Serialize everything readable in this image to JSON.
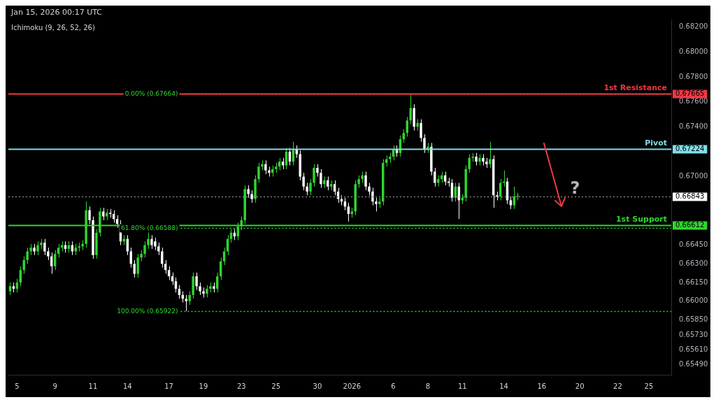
{
  "chart_data": {
    "type": "candlestick",
    "annotations": [
      "Jan 15, 2026 00:17 UTC",
      "Ichimoku (9, 26, 52, 26)",
      "?",
      "0.66843",
      "0.67665",
      "0.67224",
      "0.66612"
    ],
    "categories": [
      null,
      null,
      "5",
      null,
      null,
      null,
      null,
      null,
      null,
      null,
      null,
      null,
      null,
      "9",
      null,
      null,
      null,
      null,
      null,
      null,
      null,
      null,
      null,
      null,
      "11",
      null,
      null,
      null,
      null,
      null,
      null,
      null,
      null,
      null,
      "14",
      null,
      null,
      null,
      null,
      null,
      null,
      null,
      null,
      null,
      null,
      null,
      "17",
      null,
      null,
      null,
      null,
      null,
      null,
      null,
      null,
      null,
      "19",
      null,
      null,
      null,
      null,
      null,
      null,
      null,
      null,
      null,
      null,
      "23",
      null,
      null,
      null,
      null,
      null,
      null,
      null,
      null,
      null,
      "25",
      null,
      null,
      null,
      null,
      null,
      null,
      null,
      null,
      null,
      null,
      null,
      "30",
      null,
      null,
      null,
      null,
      null,
      null,
      null,
      null,
      null,
      "2026",
      null,
      null,
      null,
      null,
      null,
      null,
      null,
      null,
      null,
      null,
      null,
      "6",
      null,
      null,
      null,
      null,
      null,
      null,
      null,
      null,
      null,
      "8",
      null,
      null,
      null,
      null,
      null,
      null,
      null,
      null,
      null,
      "11",
      null,
      null,
      null,
      null,
      null,
      null,
      null,
      null,
      null,
      null,
      null,
      "14",
      null,
      null,
      null,
      null,
      null,
      null,
      null,
      null,
      null,
      null,
      "16",
      null,
      null,
      null,
      null,
      null,
      null,
      null,
      null,
      null,
      null,
      "20",
      null,
      null,
      null,
      null,
      null,
      null,
      null,
      null,
      null,
      null,
      "22",
      null,
      null,
      null,
      null,
      null,
      null,
      null,
      null,
      "25",
      null,
      null,
      null,
      null,
      null,
      null
    ],
    "ohlc": [
      [
        0.6608,
        0.6615,
        0.6605,
        0.6612
      ],
      [
        0.6612,
        0.6615,
        0.6607,
        0.661
      ],
      [
        0.661,
        0.6618,
        0.6607,
        0.6615
      ],
      [
        0.6615,
        0.6628,
        0.6612,
        0.6625
      ],
      [
        0.6625,
        0.6636,
        0.6622,
        0.6633
      ],
      [
        0.6633,
        0.6643,
        0.663,
        0.664
      ],
      [
        0.664,
        0.6646,
        0.6637,
        0.6643
      ],
      [
        0.6643,
        0.6646,
        0.6637,
        0.664
      ],
      [
        0.664,
        0.6648,
        0.6637,
        0.6645
      ],
      [
        0.6645,
        0.665,
        0.6642,
        0.6647
      ],
      [
        0.6647,
        0.665,
        0.6637,
        0.664
      ],
      [
        0.664,
        0.6643,
        0.6633,
        0.6636
      ],
      [
        0.6636,
        0.6639,
        0.6622,
        0.6628
      ],
      [
        0.6628,
        0.6641,
        0.6625,
        0.6638
      ],
      [
        0.6638,
        0.6646,
        0.6635,
        0.6643
      ],
      [
        0.6643,
        0.6648,
        0.664,
        0.6645
      ],
      [
        0.6645,
        0.6648,
        0.6639,
        0.6642
      ],
      [
        0.6642,
        0.6648,
        0.6639,
        0.6645
      ],
      [
        0.6645,
        0.6648,
        0.6637,
        0.664
      ],
      [
        0.664,
        0.6646,
        0.6637,
        0.6643
      ],
      [
        0.6643,
        0.6647,
        0.664,
        0.6644
      ],
      [
        0.6644,
        0.6649,
        0.6641,
        0.6646
      ],
      [
        0.6646,
        0.668,
        0.6643,
        0.6673
      ],
      [
        0.6673,
        0.6676,
        0.6662,
        0.6665
      ],
      [
        0.6665,
        0.6668,
        0.6634,
        0.6637
      ],
      [
        0.6637,
        0.6658,
        0.6634,
        0.6655
      ],
      [
        0.6655,
        0.6675,
        0.6652,
        0.6672
      ],
      [
        0.6672,
        0.6675,
        0.6665,
        0.6668
      ],
      [
        0.6668,
        0.6674,
        0.6665,
        0.6671
      ],
      [
        0.6671,
        0.6674,
        0.6667,
        0.667
      ],
      [
        0.667,
        0.6673,
        0.6663,
        0.6666
      ],
      [
        0.6666,
        0.6669,
        0.6659,
        0.6662
      ],
      [
        0.6662,
        0.6665,
        0.6645,
        0.6648
      ],
      [
        0.6648,
        0.6653,
        0.6645,
        0.665
      ],
      [
        0.665,
        0.6653,
        0.6637,
        0.664
      ],
      [
        0.664,
        0.6643,
        0.6627,
        0.663
      ],
      [
        0.663,
        0.6633,
        0.6619,
        0.6622
      ],
      [
        0.6622,
        0.6638,
        0.6619,
        0.6635
      ],
      [
        0.6635,
        0.6641,
        0.6632,
        0.6638
      ],
      [
        0.6638,
        0.6648,
        0.6635,
        0.6645
      ],
      [
        0.6645,
        0.6656,
        0.6642,
        0.665
      ],
      [
        0.665,
        0.6653,
        0.6642,
        0.6645
      ],
      [
        0.6648,
        0.6651,
        0.6641,
        0.6644
      ],
      [
        0.6644,
        0.6647,
        0.6637,
        0.664
      ],
      [
        0.664,
        0.6643,
        0.6627,
        0.663
      ],
      [
        0.663,
        0.6633,
        0.6622,
        0.6625
      ],
      [
        0.6625,
        0.6628,
        0.6617,
        0.662
      ],
      [
        0.662,
        0.6623,
        0.6613,
        0.6616
      ],
      [
        0.6616,
        0.6619,
        0.6607,
        0.661
      ],
      [
        0.661,
        0.6613,
        0.6602,
        0.6605
      ],
      [
        0.6605,
        0.6608,
        0.6599,
        0.6602
      ],
      [
        0.6602,
        0.6605,
        0.6592,
        0.66
      ],
      [
        0.66,
        0.6608,
        0.6597,
        0.6605
      ],
      [
        0.6605,
        0.6623,
        0.6602,
        0.662
      ],
      [
        0.662,
        0.6623,
        0.6609,
        0.6612
      ],
      [
        0.6612,
        0.6615,
        0.6605,
        0.6608
      ],
      [
        0.6608,
        0.6611,
        0.6603,
        0.6606
      ],
      [
        0.6606,
        0.6613,
        0.6603,
        0.661
      ],
      [
        0.661,
        0.6615,
        0.6607,
        0.6612
      ],
      [
        0.6612,
        0.6615,
        0.6607,
        0.661
      ],
      [
        0.661,
        0.6623,
        0.6607,
        0.662
      ],
      [
        0.662,
        0.6635,
        0.6617,
        0.6632
      ],
      [
        0.6632,
        0.6643,
        0.6629,
        0.664
      ],
      [
        0.664,
        0.6653,
        0.6637,
        0.665
      ],
      [
        0.665,
        0.6658,
        0.6647,
        0.6655
      ],
      [
        0.6655,
        0.6658,
        0.6649,
        0.6652
      ],
      [
        0.6652,
        0.6663,
        0.6649,
        0.666
      ],
      [
        0.666,
        0.6668,
        0.6657,
        0.6665
      ],
      [
        0.6665,
        0.6693,
        0.6662,
        0.669
      ],
      [
        0.669,
        0.6693,
        0.6683,
        0.6686
      ],
      [
        0.6686,
        0.6689,
        0.6679,
        0.6682
      ],
      [
        0.6682,
        0.6701,
        0.6679,
        0.6698
      ],
      [
        0.6698,
        0.6711,
        0.6695,
        0.6708
      ],
      [
        0.6708,
        0.6713,
        0.6705,
        0.671
      ],
      [
        0.671,
        0.6713,
        0.6702,
        0.6705
      ],
      [
        0.6705,
        0.6708,
        0.67,
        0.6703
      ],
      [
        0.6703,
        0.6709,
        0.67,
        0.6706
      ],
      [
        0.6706,
        0.6711,
        0.6703,
        0.6708
      ],
      [
        0.6708,
        0.6715,
        0.6705,
        0.6712
      ],
      [
        0.6712,
        0.6715,
        0.6706,
        0.6709
      ],
      [
        0.6709,
        0.6723,
        0.6706,
        0.672
      ],
      [
        0.672,
        0.6723,
        0.6709,
        0.6712
      ],
      [
        0.6712,
        0.6728,
        0.6709,
        0.6722
      ],
      [
        0.6722,
        0.6725,
        0.6715,
        0.6718
      ],
      [
        0.6718,
        0.6721,
        0.6697,
        0.67
      ],
      [
        0.67,
        0.6703,
        0.6689,
        0.6692
      ],
      [
        0.6692,
        0.6695,
        0.6685,
        0.6688
      ],
      [
        0.6688,
        0.6698,
        0.6685,
        0.6695
      ],
      [
        0.6695,
        0.671,
        0.6692,
        0.6707
      ],
      [
        0.6707,
        0.671,
        0.67,
        0.6703
      ],
      [
        0.6703,
        0.6706,
        0.6691,
        0.6694
      ],
      [
        0.6694,
        0.67,
        0.6691,
        0.6697
      ],
      [
        0.6697,
        0.67,
        0.6689,
        0.6692
      ],
      [
        0.6692,
        0.6697,
        0.6689,
        0.6694
      ],
      [
        0.6694,
        0.6697,
        0.6685,
        0.6688
      ],
      [
        0.6688,
        0.6691,
        0.6679,
        0.6682
      ],
      [
        0.6682,
        0.6685,
        0.6677,
        0.668
      ],
      [
        0.668,
        0.6683,
        0.6673,
        0.6676
      ],
      [
        0.6676,
        0.6679,
        0.6664,
        0.667
      ],
      [
        0.667,
        0.6675,
        0.6667,
        0.6672
      ],
      [
        0.6672,
        0.6697,
        0.6669,
        0.6694
      ],
      [
        0.6694,
        0.6701,
        0.6691,
        0.6698
      ],
      [
        0.6698,
        0.6704,
        0.6695,
        0.6701
      ],
      [
        0.6701,
        0.6704,
        0.6689,
        0.6692
      ],
      [
        0.6692,
        0.6695,
        0.6685,
        0.6688
      ],
      [
        0.6688,
        0.6691,
        0.6677,
        0.668
      ],
      [
        0.668,
        0.6683,
        0.6672,
        0.6678
      ],
      [
        0.6678,
        0.6683,
        0.6675,
        0.668
      ],
      [
        0.668,
        0.6714,
        0.6677,
        0.6711
      ],
      [
        0.6711,
        0.6717,
        0.6708,
        0.6714
      ],
      [
        0.6714,
        0.6719,
        0.6711,
        0.6716
      ],
      [
        0.6716,
        0.6725,
        0.6713,
        0.6722
      ],
      [
        0.6722,
        0.6725,
        0.6716,
        0.6719
      ],
      [
        0.6719,
        0.6733,
        0.6716,
        0.673
      ],
      [
        0.673,
        0.6738,
        0.6727,
        0.6735
      ],
      [
        0.6735,
        0.6748,
        0.6732,
        0.6745
      ],
      [
        0.6745,
        0.6766,
        0.6742,
        0.6755
      ],
      [
        0.6755,
        0.6758,
        0.6737,
        0.674
      ],
      [
        0.674,
        0.6746,
        0.6737,
        0.6743
      ],
      [
        0.6743,
        0.6746,
        0.6728,
        0.6731
      ],
      [
        0.6731,
        0.6734,
        0.6719,
        0.6722
      ],
      [
        0.6722,
        0.6727,
        0.6719,
        0.6724
      ],
      [
        0.6724,
        0.6727,
        0.6701,
        0.6704
      ],
      [
        0.6704,
        0.6707,
        0.6692,
        0.6695
      ],
      [
        0.6695,
        0.6701,
        0.6692,
        0.6698
      ],
      [
        0.6698,
        0.6704,
        0.6695,
        0.6701
      ],
      [
        0.6701,
        0.6704,
        0.6693,
        0.6696
      ],
      [
        0.6696,
        0.6699,
        0.6692,
        0.6695
      ],
      [
        0.6695,
        0.6698,
        0.668,
        0.6683
      ],
      [
        0.6683,
        0.6695,
        0.668,
        0.6692
      ],
      [
        0.6692,
        0.6695,
        0.6666,
        0.6681
      ],
      [
        0.6681,
        0.6686,
        0.6678,
        0.6683
      ],
      [
        0.6683,
        0.6709,
        0.668,
        0.6706
      ],
      [
        0.6706,
        0.6718,
        0.6703,
        0.6715
      ],
      [
        0.6715,
        0.6719,
        0.6712,
        0.6716
      ],
      [
        0.6716,
        0.6719,
        0.6709,
        0.6712
      ],
      [
        0.6712,
        0.6718,
        0.6709,
        0.6715
      ],
      [
        0.6715,
        0.6718,
        0.6709,
        0.6712
      ],
      [
        0.6712,
        0.6715,
        0.6707,
        0.671
      ],
      [
        0.671,
        0.6728,
        0.6707,
        0.6714
      ],
      [
        0.6714,
        0.6717,
        0.6675,
        0.6685
      ],
      [
        0.6685,
        0.6688,
        0.6681,
        0.6684
      ],
      [
        0.6684,
        0.6698,
        0.6681,
        0.6695
      ],
      [
        0.6695,
        0.6705,
        0.6692,
        0.6696
      ],
      [
        0.6696,
        0.6699,
        0.6678,
        0.6681
      ],
      [
        0.6681,
        0.6684,
        0.6674,
        0.6677
      ],
      [
        0.6677,
        0.6692,
        0.6674,
        0.6684
      ],
      [
        0.6684,
        0.6687,
        0.6681,
        0.66843
      ],
      null,
      null,
      null,
      null,
      null,
      null,
      null,
      null,
      null,
      null,
      null,
      null,
      null,
      null,
      null,
      null,
      null,
      null,
      null,
      null,
      null,
      null,
      null,
      null,
      null,
      null,
      null,
      null,
      null,
      null,
      null,
      null,
      null,
      null,
      null,
      null,
      null,
      null,
      null,
      null,
      null,
      null,
      null,
      null
    ],
    "colors": [
      "#2fd62f",
      "#ffffff",
      "#2fd62f",
      "#2fd62f",
      "#2fd62f",
      "#2fd62f",
      "#2fd62f",
      "#ffffff",
      "#2fd62f",
      "#2fd62f",
      "#ffffff",
      "#ffffff",
      "#ffffff",
      "#2fd62f",
      "#2fd62f",
      "#2fd62f",
      "#ffffff",
      "#2fd62f",
      "#ffffff",
      "#2fd62f",
      "#2fd62f",
      "#2fd62f",
      "#2fd62f",
      "#ffffff",
      "#ffffff",
      "#2fd62f",
      "#2fd62f",
      "#ffffff",
      "#2fd62f",
      "#ffffff",
      "#ffffff",
      "#ffffff",
      "#ffffff",
      "#2fd62f",
      "#ffffff",
      "#ffffff",
      "#ffffff",
      "#2fd62f",
      "#2fd62f",
      "#2fd62f",
      "#2fd62f",
      "#ffffff",
      "#ffffff",
      "#ffffff",
      "#ffffff",
      "#ffffff",
      "#ffffff",
      "#ffffff",
      "#ffffff",
      "#ffffff",
      "#ffffff",
      "#ffffff",
      "#2fd62f",
      "#2fd62f",
      "#ffffff",
      "#ffffff",
      "#ffffff",
      "#2fd62f",
      "#2fd62f",
      "#ffffff",
      "#2fd62f",
      "#2fd62f",
      "#2fd62f",
      "#2fd62f",
      "#2fd62f",
      "#ffffff",
      "#2fd62f",
      "#2fd62f",
      "#2fd62f",
      "#ffffff",
      "#ffffff",
      "#2fd62f",
      "#2fd62f",
      "#2fd62f",
      "#ffffff",
      "#ffffff",
      "#2fd62f",
      "#2fd62f",
      "#2fd62f",
      "#ffffff",
      "#2fd62f",
      "#ffffff",
      "#2fd62f",
      "#ffffff",
      "#ffffff",
      "#ffffff",
      "#ffffff",
      "#2fd62f",
      "#2fd62f",
      "#ffffff",
      "#ffffff",
      "#2fd62f",
      "#ffffff",
      "#2fd62f",
      "#ffffff",
      "#ffffff",
      "#ffffff",
      "#ffffff",
      "#ffffff",
      "#2fd62f",
      "#2fd62f",
      "#2fd62f",
      "#2fd62f",
      "#ffffff",
      "#ffffff",
      "#ffffff",
      "#ffffff",
      "#2fd62f",
      "#2fd62f",
      "#2fd62f",
      "#2fd62f",
      "#2fd62f",
      "#ffffff",
      "#2fd62f",
      "#2fd62f",
      "#2fd62f",
      "#2fd62f",
      "#ffffff",
      "#2fd62f",
      "#ffffff",
      "#ffffff",
      "#2fd62f",
      "#ffffff",
      "#ffffff",
      "#2fd62f",
      "#2fd62f",
      "#ffffff",
      "#ffffff",
      "#ffffff",
      "#2fd62f",
      "#ffffff",
      "#2fd62f",
      "#2fd62f",
      "#2fd62f",
      "#2fd62f",
      "#ffffff",
      "#2fd62f",
      "#ffffff",
      "#ffffff",
      "#2fd62f",
      "#ffffff",
      "#ffffff",
      "#2fd62f",
      "#2fd62f",
      "#ffffff",
      "#ffffff",
      "#2fd62f",
      "#2fd62f",
      null,
      null,
      null,
      null,
      null,
      null,
      null,
      null,
      null,
      null,
      null,
      null,
      null,
      null,
      null,
      null,
      null,
      null,
      null,
      null,
      null,
      null,
      null,
      null,
      null,
      null,
      null,
      null,
      null,
      null,
      null,
      null,
      null,
      null,
      null,
      null,
      null,
      null,
      null,
      null,
      null,
      null,
      null,
      null
    ],
    "ylim": [
      0.6541,
      0.6826
    ],
    "yticks": [
      {
        "value": 0.682,
        "label": "0.68200"
      },
      {
        "value": 0.68,
        "label": "0.68000"
      },
      {
        "value": 0.678,
        "label": "0.67800"
      },
      {
        "value": 0.676,
        "label": "0.67600"
      },
      {
        "value": 0.674,
        "label": "0.67400"
      },
      {
        "value": 0.67,
        "label": "0.67000"
      },
      {
        "value": 0.6645,
        "label": "0.66450"
      },
      {
        "value": 0.663,
        "label": "0.66300"
      },
      {
        "value": 0.6615,
        "label": "0.66150"
      },
      {
        "value": 0.66,
        "label": "0.66000"
      },
      {
        "value": 0.6585,
        "label": "0.65850"
      },
      {
        "value": 0.6573,
        "label": "0.65730"
      },
      {
        "value": 0.6561,
        "label": "0.65610"
      },
      {
        "value": 0.6549,
        "label": "0.65490"
      }
    ],
    "ref_lines": [
      {
        "axis": "y",
        "value": 0.67664,
        "label": "0.00% (0.67664)",
        "color": "#2fd62f",
        "line_style": "dotted"
      },
      {
        "axis": "y",
        "value": 0.66588,
        "label": "61.80% (0.66588)",
        "color": "#2fd62f",
        "line_style": "dotted"
      },
      {
        "axis": "y",
        "value": 0.65922,
        "label": "100.00% (0.65922)",
        "color": "#2fd62f",
        "line_style": "dotted"
      },
      {
        "axis": "y",
        "value": 0.66843,
        "label": null,
        "color": "#787b86",
        "line_style": "dotted"
      },
      {
        "axis": "y",
        "value": 0.67665,
        "label": "1st Resistance",
        "color": "#f23645",
        "line_style": "solid"
      },
      {
        "axis": "y",
        "value": 0.67224,
        "label": "Pivot",
        "color": "#80deea",
        "line_style": "solid"
      },
      {
        "axis": "y",
        "value": 0.66612,
        "label": "1st Support",
        "color": "#2fd62f",
        "line_style": "solid"
      }
    ],
    "grid": false,
    "legend": false
  }
}
